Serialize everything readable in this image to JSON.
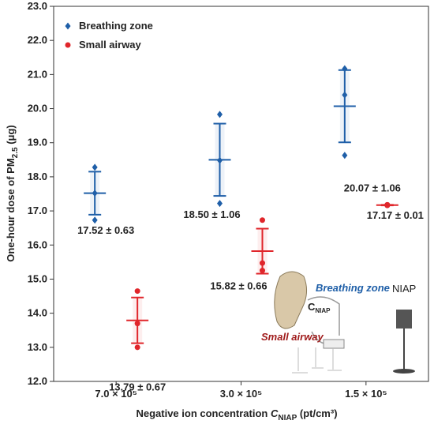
{
  "chart_data": {
    "type": "errorbar",
    "ylabel": {
      "main": "One-hour dose of PM",
      "sub": "2.5",
      "end": " (μg)"
    },
    "xlabel": {
      "main": "Negative ion concentration ",
      "var": "C",
      "sub": "NIAP",
      "end": " (pt/cm³)"
    },
    "categories": [
      "7.0 × 10⁵",
      "3.0 × 10⁵",
      "1.5 × 10⁵"
    ],
    "ylim": [
      12,
      23
    ],
    "yticks": [
      {
        "value": 12,
        "label": "12.0"
      },
      {
        "value": 13,
        "label": "13.0"
      },
      {
        "value": 14,
        "label": "14.0"
      },
      {
        "value": 15,
        "label": "15.0"
      },
      {
        "value": 16,
        "label": "16.0"
      },
      {
        "value": 17,
        "label": "17.0"
      },
      {
        "value": 18,
        "label": "18.0"
      },
      {
        "value": 19,
        "label": "19.0"
      },
      {
        "value": 20,
        "label": "20.0"
      },
      {
        "value": 21,
        "label": "21.0"
      },
      {
        "value": 22,
        "label": "22.0"
      },
      {
        "value": 23,
        "label": "23.0"
      }
    ],
    "legend": "upper left",
    "series": [
      {
        "name": "Breathing zone",
        "color": "#1f5fa8",
        "marker": "diamond",
        "values": [
          17.52,
          18.5,
          20.07
        ],
        "errors": [
          0.63,
          1.06,
          1.06
        ],
        "value_labels": [
          "17.52 ± 0.63",
          "18.50 ± 1.06",
          "20.07 ± 1.06"
        ],
        "points": [
          [
            18.28,
            17.52,
            16.73
          ],
          [
            19.83,
            18.48,
            17.22
          ],
          [
            21.17,
            20.4,
            18.63
          ]
        ]
      },
      {
        "name": "Small airway",
        "color": "#e0262b",
        "marker": "circle",
        "values": [
          13.79,
          15.82,
          17.17
        ],
        "errors": [
          0.67,
          0.66,
          0.01
        ],
        "value_labels": [
          "13.79 ± 0.67",
          "15.82 ± 0.66",
          "17.17 ± 0.01"
        ],
        "points": [
          [
            14.65,
            13.7,
            13.0
          ],
          [
            16.73,
            15.47,
            15.25
          ],
          [
            17.18,
            17.18,
            17.16
          ]
        ]
      }
    ],
    "inset": {
      "breathing": "Breathing zone",
      "airway": "Small airway",
      "device": "NIAP",
      "conc": "C",
      "conc_sub": "NIAP"
    }
  }
}
